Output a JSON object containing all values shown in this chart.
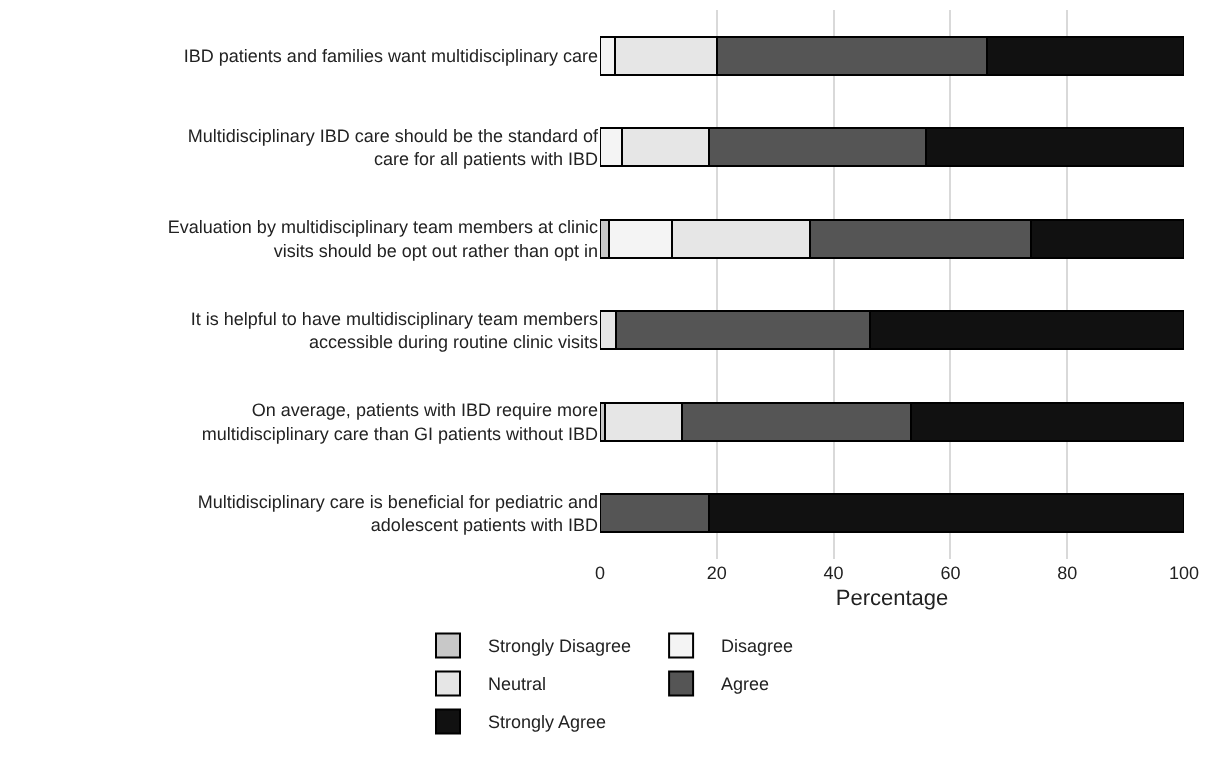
{
  "chart_data": {
    "type": "bar",
    "orientation": "horizontal",
    "stacked": true,
    "xlabel": "Percentage",
    "xlim": [
      0,
      100
    ],
    "xticks": [
      0,
      20,
      40,
      60,
      80,
      100
    ],
    "grid": "x",
    "legend": "bottom",
    "categories": [
      "IBD patients and families want multidisciplinary care",
      "Multidisciplinary IBD care should be the standard of care for all patients with IBD",
      "Evaluation by multidisciplinary team members at clinic visits should be opt out rather than opt in",
      "It is helpful to have multidisciplinary team members accessible during routine clinic visits",
      "On average, patients with IBD require more multidisciplinary care than GI patients without IBD",
      "Multidisciplinary care is beneficial for pediatric and adolescent patients with IBD"
    ],
    "series": [
      {
        "name": "Strongly Disagree",
        "color": "#c8c8c8",
        "values": [
          0,
          0,
          1.5,
          0,
          0.8,
          0
        ]
      },
      {
        "name": "Disagree",
        "color": "#f4f4f4",
        "values": [
          2.5,
          3.7,
          10.9,
          0,
          0,
          0
        ]
      },
      {
        "name": "Neutral",
        "color": "#e6e6e6",
        "values": [
          17.5,
          14.9,
          23.5,
          2.8,
          13.3,
          0
        ]
      },
      {
        "name": "Agree",
        "color": "#555555",
        "values": [
          46.3,
          37.3,
          37.9,
          43.5,
          39.2,
          18.6
        ]
      },
      {
        "name": "Strongly Agree",
        "color": "#111111",
        "values": [
          33.7,
          44.1,
          26.2,
          53.7,
          46.7,
          81.4
        ]
      }
    ]
  }
}
